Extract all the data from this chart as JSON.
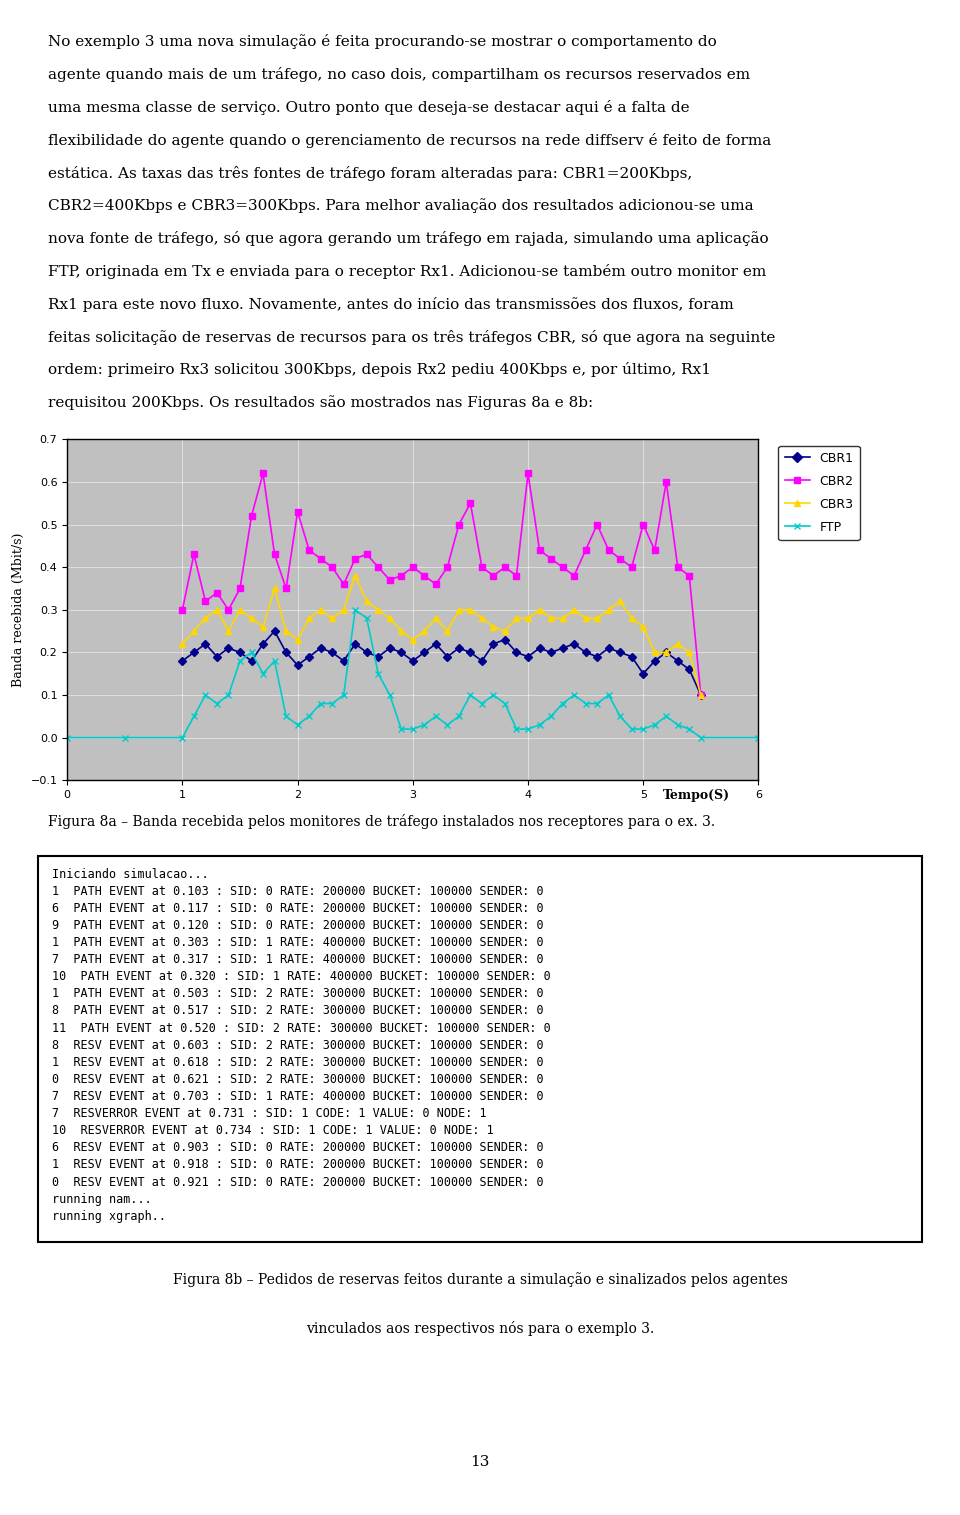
{
  "page_text_top": "No exemplo 3 uma nova simulação é feita procurando-se mostrar o comportamento do agente quando mais de um tráfego, no caso dois, compartilham os recursos reservados em uma mesma classe de serviço. Outro ponto que deseja-se destacar aqui é a falta de flexibilidade do agente quando o gerenciamento de recursos na rede diffserv é feito de forma estática. As taxas das três fontes de tráfego foram alteradas para: CBR1=200Kbps, CBR2=400Kbps e CBR3=300Kbps. Para melhor avaliação dos resultados adicionou-se uma nova fonte de tráfego, só que agora gerando um tráfego em rajada, simulando uma aplicação FTP, originada em Tx e enviada para o receptor Rx1. Adicionou-se também outro monitor em Rx1 para este novo fluxo. Novamente, antes do início das transmissões dos fluxos, foram feitas solicitação de reservas de recursos para os três tráfegos CBR, só que agora na seguinte ordem: primeiro Rx3 solicitou 300Kbps, depois Rx2 pediu 400Kbps e, por último, Rx1 requisitou 200Kbps. Os resultados são mostrados nas Figuras 8a e 8b:",
  "fig8a_caption": "Figura 8a – Banda recebida pelos monitores de tráfego instalados nos receptores para o ex. 3.",
  "fig8b_caption_line1": "Figura 8b – Pedidos de reservas feitos durante a simulação e sinalizados pelos agentes",
  "fig8b_caption_line2": "vinculados aos respectivos nós para o exemplo 3.",
  "page_number": "13",
  "ylabel": "Banda recebida (Mbit/s)",
  "xlabel": "Tempo(S)",
  "xlim": [
    0,
    6
  ],
  "ylim": [
    -0.1,
    0.7
  ],
  "yticks": [
    -0.1,
    0,
    0.1,
    0.2,
    0.3,
    0.4,
    0.5,
    0.6,
    0.7
  ],
  "xticks": [
    0,
    1,
    2,
    3,
    4,
    5,
    6
  ],
  "legend_labels": [
    "CBR1",
    "CBR2",
    "CBR3",
    "FTP"
  ],
  "cbr1_color": "#00008B",
  "cbr2_color": "#FF00FF",
  "cbr3_color": "#FFD700",
  "ftp_color": "#00CCCC",
  "background_color": "#C0C0C0",
  "cbr1_x": [
    1.0,
    1.1,
    1.2,
    1.3,
    1.4,
    1.5,
    1.6,
    1.7,
    1.8,
    1.9,
    2.0,
    2.1,
    2.2,
    2.3,
    2.4,
    2.5,
    2.6,
    2.7,
    2.8,
    2.9,
    3.0,
    3.1,
    3.2,
    3.3,
    3.4,
    3.5,
    3.6,
    3.7,
    3.8,
    3.9,
    4.0,
    4.1,
    4.2,
    4.3,
    4.4,
    4.5,
    4.6,
    4.7,
    4.8,
    4.9,
    5.0,
    5.1,
    5.2,
    5.3,
    5.4,
    5.5
  ],
  "cbr1_y": [
    0.18,
    0.2,
    0.22,
    0.19,
    0.21,
    0.2,
    0.18,
    0.22,
    0.25,
    0.2,
    0.17,
    0.19,
    0.21,
    0.2,
    0.18,
    0.22,
    0.2,
    0.19,
    0.21,
    0.2,
    0.18,
    0.2,
    0.22,
    0.19,
    0.21,
    0.2,
    0.18,
    0.22,
    0.23,
    0.2,
    0.19,
    0.21,
    0.2,
    0.21,
    0.22,
    0.2,
    0.19,
    0.21,
    0.2,
    0.19,
    0.15,
    0.18,
    0.2,
    0.18,
    0.16,
    0.1
  ],
  "cbr2_x": [
    1.0,
    1.1,
    1.2,
    1.3,
    1.4,
    1.5,
    1.6,
    1.7,
    1.8,
    1.9,
    2.0,
    2.1,
    2.2,
    2.3,
    2.4,
    2.5,
    2.6,
    2.7,
    2.8,
    2.9,
    3.0,
    3.1,
    3.2,
    3.3,
    3.4,
    3.5,
    3.6,
    3.7,
    3.8,
    3.9,
    4.0,
    4.1,
    4.2,
    4.3,
    4.4,
    4.5,
    4.6,
    4.7,
    4.8,
    4.9,
    5.0,
    5.1,
    5.2,
    5.3,
    5.4,
    5.5
  ],
  "cbr2_y": [
    0.3,
    0.43,
    0.32,
    0.34,
    0.3,
    0.35,
    0.52,
    0.62,
    0.43,
    0.35,
    0.53,
    0.44,
    0.42,
    0.4,
    0.36,
    0.42,
    0.43,
    0.4,
    0.37,
    0.38,
    0.4,
    0.38,
    0.36,
    0.4,
    0.5,
    0.55,
    0.4,
    0.38,
    0.4,
    0.38,
    0.62,
    0.44,
    0.42,
    0.4,
    0.38,
    0.44,
    0.5,
    0.44,
    0.42,
    0.4,
    0.5,
    0.44,
    0.6,
    0.4,
    0.38,
    0.1
  ],
  "cbr3_x": [
    1.0,
    1.1,
    1.2,
    1.3,
    1.4,
    1.5,
    1.6,
    1.7,
    1.8,
    1.9,
    2.0,
    2.1,
    2.2,
    2.3,
    2.4,
    2.5,
    2.6,
    2.7,
    2.8,
    2.9,
    3.0,
    3.1,
    3.2,
    3.3,
    3.4,
    3.5,
    3.6,
    3.7,
    3.8,
    3.9,
    4.0,
    4.1,
    4.2,
    4.3,
    4.4,
    4.5,
    4.6,
    4.7,
    4.8,
    4.9,
    5.0,
    5.1,
    5.2,
    5.3,
    5.4,
    5.5
  ],
  "cbr3_y": [
    0.22,
    0.25,
    0.28,
    0.3,
    0.25,
    0.3,
    0.28,
    0.26,
    0.35,
    0.25,
    0.23,
    0.28,
    0.3,
    0.28,
    0.3,
    0.38,
    0.32,
    0.3,
    0.28,
    0.25,
    0.23,
    0.25,
    0.28,
    0.25,
    0.3,
    0.3,
    0.28,
    0.26,
    0.25,
    0.28,
    0.28,
    0.3,
    0.28,
    0.28,
    0.3,
    0.28,
    0.28,
    0.3,
    0.32,
    0.28,
    0.26,
    0.2,
    0.2,
    0.22,
    0.2,
    0.1
  ],
  "ftp_x": [
    0.0,
    0.5,
    1.0,
    1.1,
    1.2,
    1.3,
    1.4,
    1.5,
    1.6,
    1.7,
    1.8,
    1.9,
    2.0,
    2.1,
    2.2,
    2.3,
    2.4,
    2.5,
    2.6,
    2.7,
    2.8,
    2.9,
    3.0,
    3.1,
    3.2,
    3.3,
    3.4,
    3.5,
    3.6,
    3.7,
    3.8,
    3.9,
    4.0,
    4.1,
    4.2,
    4.3,
    4.4,
    4.5,
    4.6,
    4.7,
    4.8,
    4.9,
    5.0,
    5.1,
    5.2,
    5.3,
    5.4,
    5.5,
    6.0
  ],
  "ftp_y": [
    0.0,
    0.0,
    0.0,
    0.05,
    0.1,
    0.08,
    0.1,
    0.18,
    0.2,
    0.15,
    0.18,
    0.05,
    0.03,
    0.05,
    0.08,
    0.08,
    0.1,
    0.3,
    0.28,
    0.15,
    0.1,
    0.02,
    0.02,
    0.03,
    0.05,
    0.03,
    0.05,
    0.1,
    0.08,
    0.1,
    0.08,
    0.02,
    0.02,
    0.03,
    0.05,
    0.08,
    0.1,
    0.08,
    0.08,
    0.1,
    0.05,
    0.02,
    0.02,
    0.03,
    0.05,
    0.03,
    0.02,
    0.0,
    0.0
  ],
  "terminal_lines": [
    "Iniciando simulacao...",
    "1  PATH EVENT at 0.103 : SID: 0 RATE: 200000 BUCKET: 100000 SENDER: 0",
    "6  PATH EVENT at 0.117 : SID: 0 RATE: 200000 BUCKET: 100000 SENDER: 0",
    "9  PATH EVENT at 0.120 : SID: 0 RATE: 200000 BUCKET: 100000 SENDER: 0",
    "1  PATH EVENT at 0.303 : SID: 1 RATE: 400000 BUCKET: 100000 SENDER: 0",
    "7  PATH EVENT at 0.317 : SID: 1 RATE: 400000 BUCKET: 100000 SENDER: 0",
    "10  PATH EVENT at 0.320 : SID: 1 RATE: 400000 BUCKET: 100000 SENDER: 0",
    "1  PATH EVENT at 0.503 : SID: 2 RATE: 300000 BUCKET: 100000 SENDER: 0",
    "8  PATH EVENT at 0.517 : SID: 2 RATE: 300000 BUCKET: 100000 SENDER: 0",
    "11  PATH EVENT at 0.520 : SID: 2 RATE: 300000 BUCKET: 100000 SENDER: 0",
    "8  RESV EVENT at 0.603 : SID: 2 RATE: 300000 BUCKET: 100000 SENDER: 0",
    "1  RESV EVENT at 0.618 : SID: 2 RATE: 300000 BUCKET: 100000 SENDER: 0",
    "0  RESV EVENT at 0.621 : SID: 2 RATE: 300000 BUCKET: 100000 SENDER: 0",
    "7  RESV EVENT at 0.703 : SID: 1 RATE: 400000 BUCKET: 100000 SENDER: 0",
    "7  RESVERROR EVENT at 0.731 : SID: 1 CODE: 1 VALUE: 0 NODE: 1",
    "10  RESVERROR EVENT at 0.734 : SID: 1 CODE: 1 VALUE: 0 NODE: 1",
    "6  RESV EVENT at 0.903 : SID: 0 RATE: 200000 BUCKET: 100000 SENDER: 0",
    "1  RESV EVENT at 0.918 : SID: 0 RATE: 200000 BUCKET: 100000 SENDER: 0",
    "0  RESV EVENT at 0.921 : SID: 0 RATE: 200000 BUCKET: 100000 SENDER: 0",
    "running nam...",
    "running xgraph.."
  ]
}
